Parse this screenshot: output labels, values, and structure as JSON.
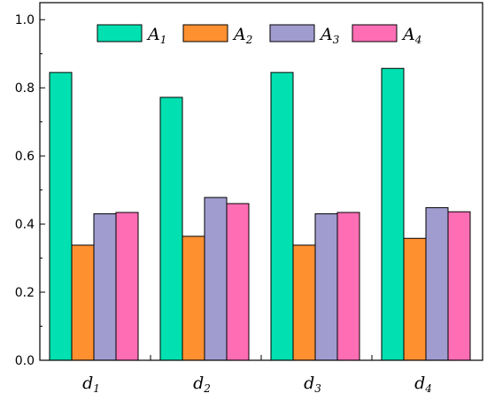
{
  "chart_data": {
    "type": "bar",
    "categories": [
      {
        "base": "d",
        "sub": "1"
      },
      {
        "base": "d",
        "sub": "2"
      },
      {
        "base": "d",
        "sub": "3"
      },
      {
        "base": "d",
        "sub": "4"
      }
    ],
    "series": [
      {
        "base": "A",
        "sub": "1",
        "color": "#00e0b0",
        "values": [
          0.845,
          0.772,
          0.845,
          0.857
        ]
      },
      {
        "base": "A",
        "sub": "2",
        "color": "#ff9030",
        "values": [
          0.338,
          0.364,
          0.338,
          0.358
        ]
      },
      {
        "base": "A",
        "sub": "3",
        "color": "#a09cd0",
        "values": [
          0.43,
          0.478,
          0.43,
          0.448
        ]
      },
      {
        "base": "A",
        "sub": "4",
        "color": "#ff6eb4",
        "values": [
          0.434,
          0.46,
          0.434,
          0.436
        ]
      }
    ],
    "ylim": [
      0,
      1.05
    ],
    "yticks": [
      "0.0",
      "0.2",
      "0.4",
      "0.6",
      "0.8",
      "1.0"
    ],
    "ytick_values": [
      0,
      0.2,
      0.4,
      0.6,
      0.8,
      1.0
    ],
    "grid": false,
    "legend_position": "top"
  }
}
